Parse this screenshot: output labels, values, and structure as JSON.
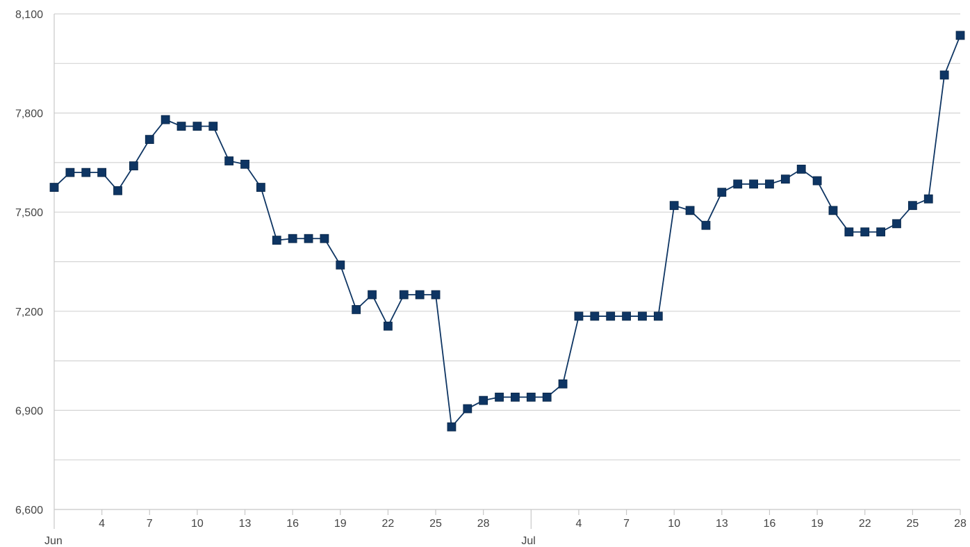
{
  "chart_data": {
    "type": "line",
    "title": "",
    "xlabel": "",
    "ylabel": "",
    "ylim": [
      6600,
      8100
    ],
    "y_ticks": [
      "6,600",
      "6,900",
      "7,200",
      "7,500",
      "7,800",
      "8,100"
    ],
    "x_axis": {
      "start": "2023-06-01",
      "end": "2023-07-28",
      "month_labels": [
        "Jun",
        "Jul"
      ],
      "day_labels": [
        "4",
        "7",
        "10",
        "13",
        "16",
        "19",
        "22",
        "25",
        "28",
        "4",
        "7",
        "10",
        "13",
        "16",
        "19",
        "22",
        "25",
        "28"
      ]
    },
    "grid": true,
    "legend": "none",
    "marker": "square",
    "color": "#0e3563",
    "series": [
      {
        "name": "",
        "x": [
          "2023-06-01",
          "2023-06-02",
          "2023-06-03",
          "2023-06-04",
          "2023-06-05",
          "2023-06-06",
          "2023-06-07",
          "2023-06-08",
          "2023-06-09",
          "2023-06-10",
          "2023-06-11",
          "2023-06-12",
          "2023-06-13",
          "2023-06-14",
          "2023-06-15",
          "2023-06-16",
          "2023-06-17",
          "2023-06-18",
          "2023-06-19",
          "2023-06-20",
          "2023-06-21",
          "2023-06-22",
          "2023-06-23",
          "2023-06-24",
          "2023-06-25",
          "2023-06-26",
          "2023-06-27",
          "2023-06-28",
          "2023-06-29",
          "2023-06-30",
          "2023-07-01",
          "2023-07-02",
          "2023-07-03",
          "2023-07-04",
          "2023-07-05",
          "2023-07-06",
          "2023-07-07",
          "2023-07-08",
          "2023-07-09",
          "2023-07-10",
          "2023-07-11",
          "2023-07-12",
          "2023-07-13",
          "2023-07-14",
          "2023-07-15",
          "2023-07-16",
          "2023-07-17",
          "2023-07-18",
          "2023-07-19",
          "2023-07-20",
          "2023-07-21",
          "2023-07-22",
          "2023-07-23",
          "2023-07-24",
          "2023-07-25",
          "2023-07-26",
          "2023-07-27",
          "2023-07-28"
        ],
        "y": [
          7575,
          7620,
          7620,
          7620,
          7565,
          7640,
          7720,
          7780,
          7760,
          7760,
          7760,
          7655,
          7645,
          7575,
          7415,
          7420,
          7420,
          7420,
          7340,
          7205,
          7250,
          7155,
          7250,
          7250,
          7250,
          6850,
          6905,
          6930,
          6940,
          6940,
          6940,
          6940,
          6980,
          7185,
          7185,
          7185,
          7185,
          7185,
          7185,
          7520,
          7505,
          7460,
          7560,
          7585,
          7585,
          7585,
          7600,
          7630,
          7595,
          7505,
          7440,
          7440,
          7440,
          7465,
          7520,
          7540,
          7915,
          8035
        ]
      }
    ]
  }
}
